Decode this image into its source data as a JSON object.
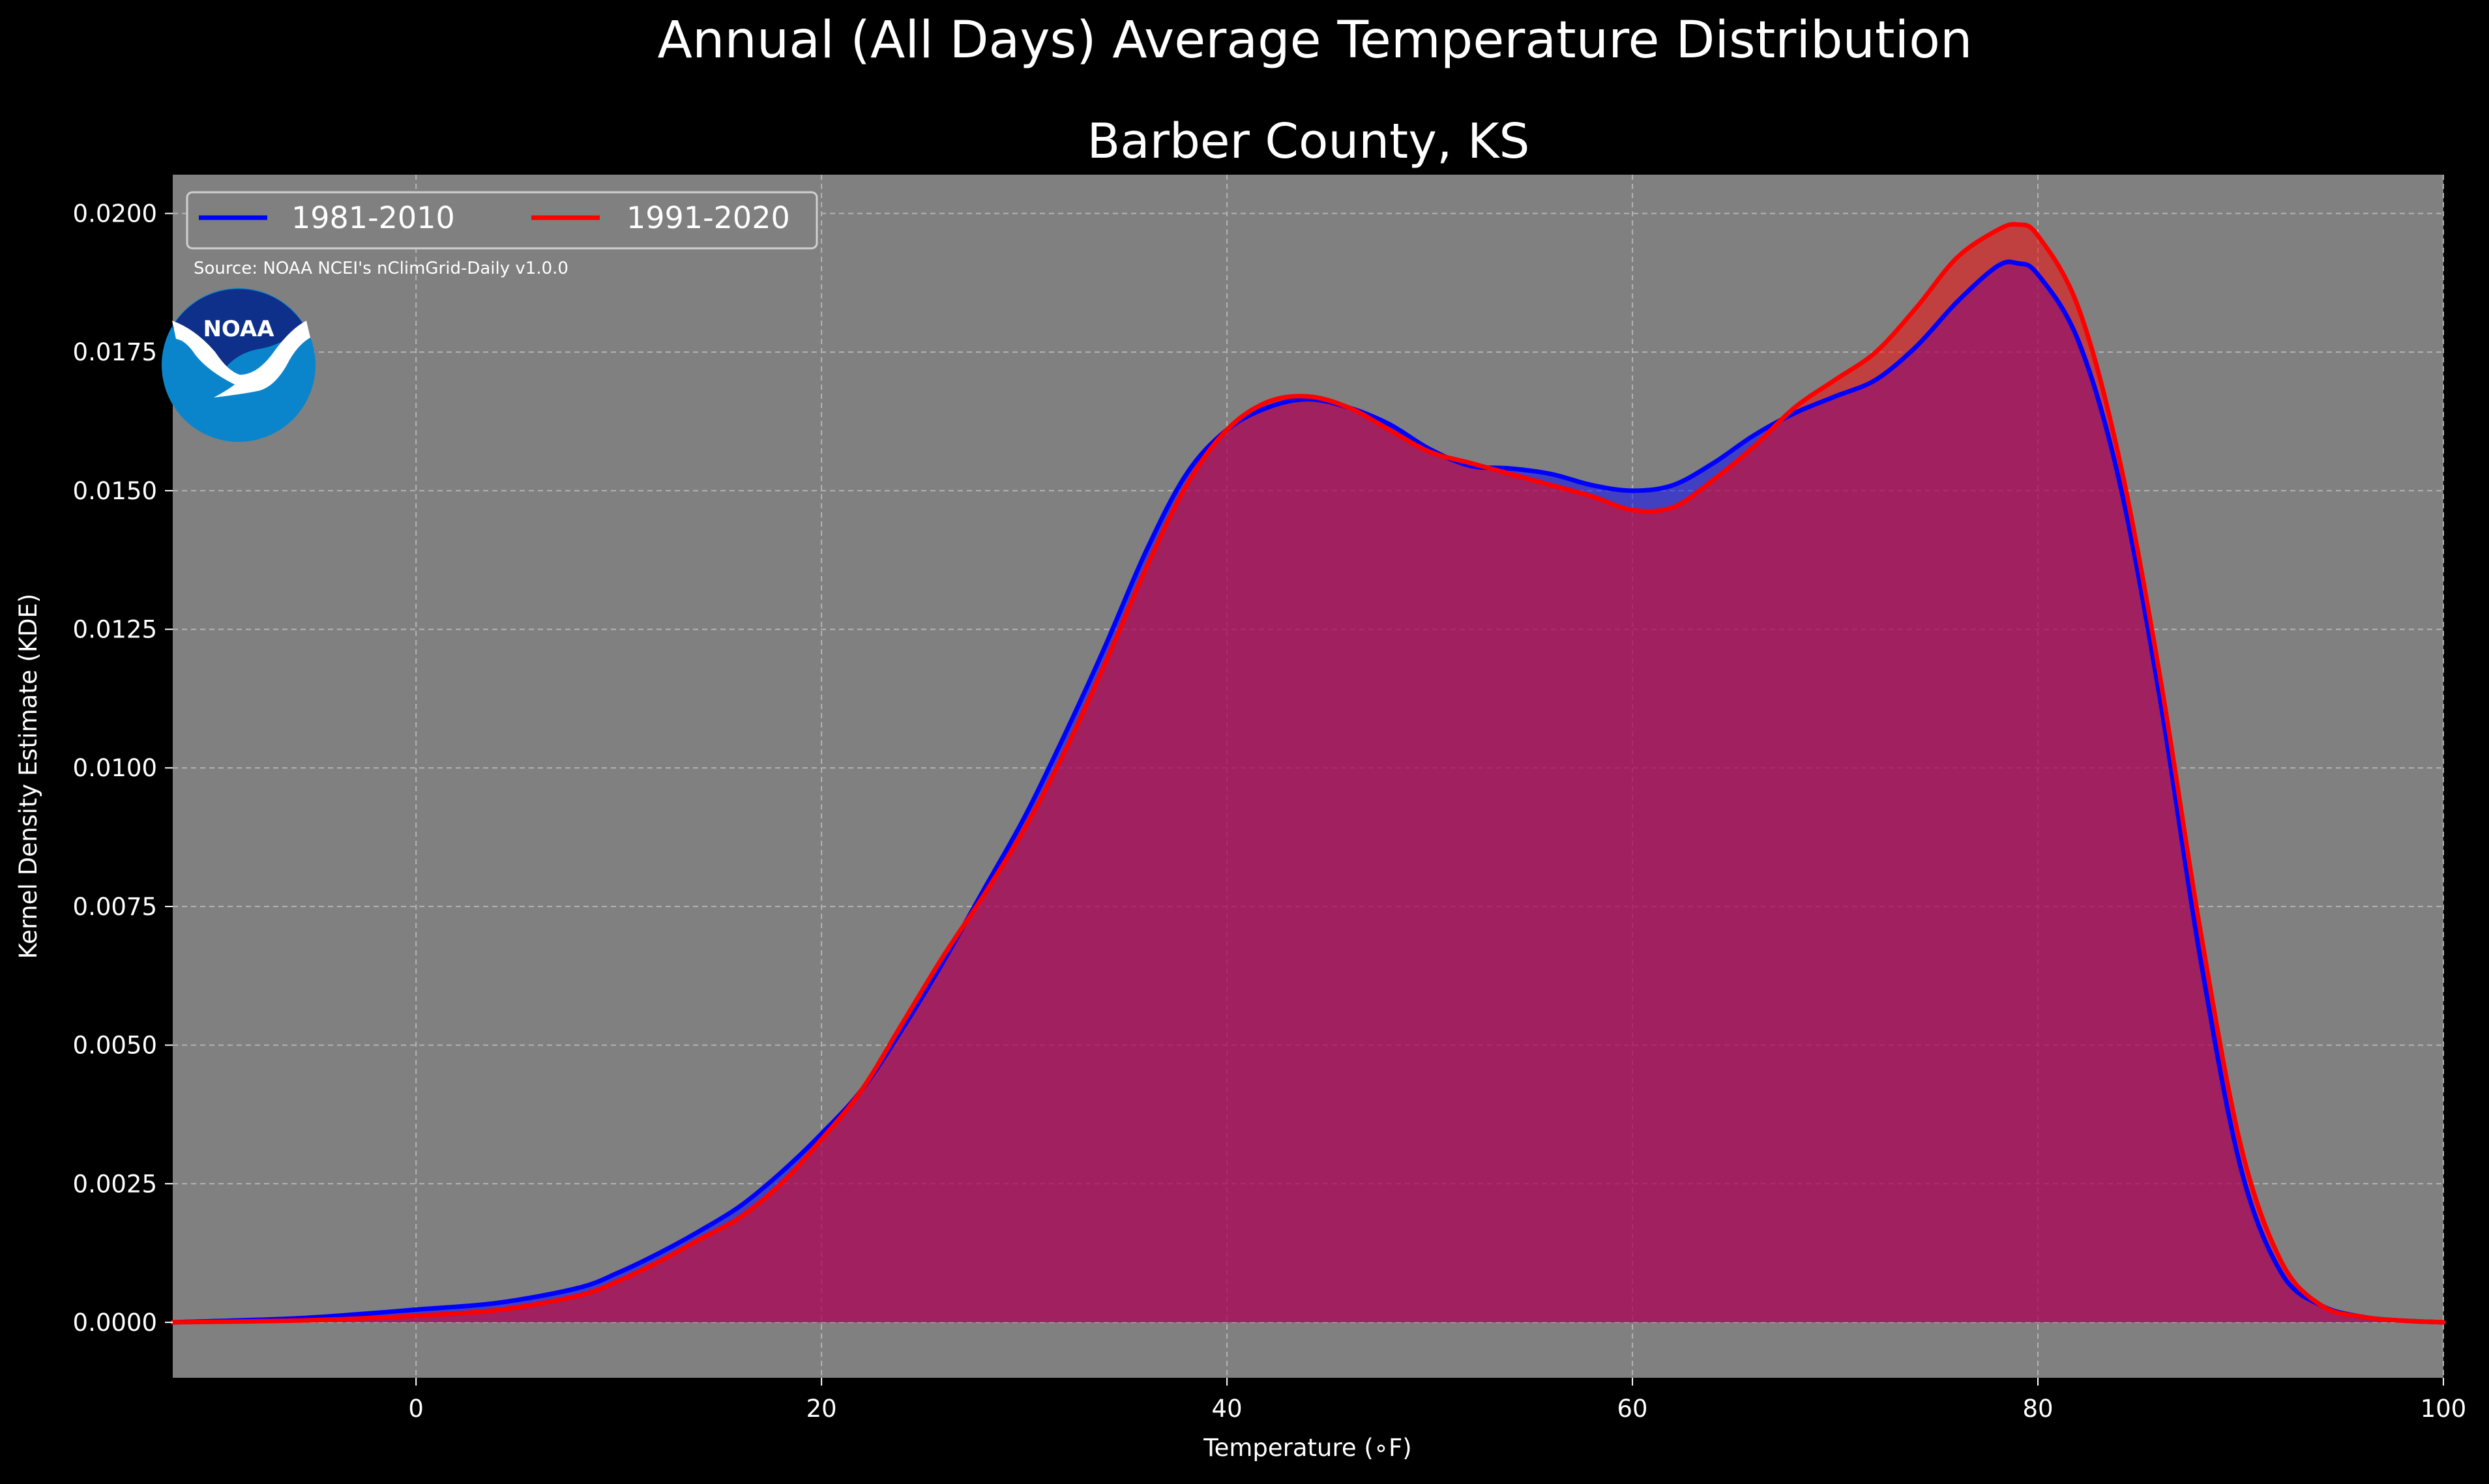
{
  "suptitle": "Annual (All Days) Average Temperature Distribution",
  "source_note": "Source: NOAA NCEI's nClimGrid-Daily v1.0.0",
  "logo": {
    "text": "NOAA",
    "icon": "noaa-logo-icon",
    "colors": {
      "outer": "#0a85cc",
      "inner": "#0e2f8a",
      "bird": "#ffffff"
    }
  },
  "colors": {
    "figure_bg": "#000000",
    "axes_bg": "#808080",
    "grid": "#b3b3b3",
    "text": "#ffffff",
    "fill_overlap": "#9e1f5e"
  },
  "chart_data": {
    "type": "area",
    "title": "Barber County, KS",
    "xlabel": "Temperature (∘F)",
    "ylabel": "Kernel Density Estimate (KDE)",
    "xlim": [
      -12,
      100
    ],
    "ylim": [
      -0.001,
      0.0207
    ],
    "xticks": [
      0,
      20,
      40,
      60,
      80,
      100
    ],
    "xtick_labels": [
      "0",
      "20",
      "40",
      "60",
      "80",
      "100"
    ],
    "yticks": [
      0,
      0.0025,
      0.005,
      0.0075,
      0.01,
      0.0125,
      0.015,
      0.0175,
      0.02
    ],
    "ytick_labels": [
      "0.0000",
      "0.0025",
      "0.0050",
      "0.0075",
      "0.0100",
      "0.0125",
      "0.0150",
      "0.0175",
      "0.0200"
    ],
    "grid": true,
    "legend_position": "top-left",
    "series": [
      {
        "name": "1981-2010",
        "color": "#0000ff",
        "x": [
          -12,
          -6,
          -2,
          0,
          4,
          8,
          10,
          12,
          14,
          16,
          18,
          20,
          22,
          24,
          26,
          28,
          30,
          32,
          34,
          36,
          38,
          40,
          42,
          44,
          46,
          48,
          50,
          52,
          54,
          56,
          58,
          60,
          62,
          64,
          66,
          68,
          70,
          72,
          74,
          76,
          78,
          79,
          80,
          82,
          84,
          86,
          88,
          90,
          92,
          94,
          96,
          98,
          100
        ],
        "y": [
          0.0,
          7e-05,
          0.00017,
          0.00023,
          0.00035,
          0.00062,
          0.0009,
          0.00125,
          0.00165,
          0.0021,
          0.0027,
          0.0034,
          0.0042,
          0.0053,
          0.0065,
          0.0078,
          0.0091,
          0.0106,
          0.0122,
          0.0139,
          0.0153,
          0.0161,
          0.0165,
          0.01665,
          0.0165,
          0.0162,
          0.01575,
          0.01545,
          0.0154,
          0.0153,
          0.0151,
          0.015,
          0.0151,
          0.0155,
          0.016,
          0.0164,
          0.0167,
          0.017,
          0.0176,
          0.0184,
          0.01905,
          0.0191,
          0.0189,
          0.0177,
          0.0152,
          0.0113,
          0.0066,
          0.0028,
          0.0009,
          0.0003,
          0.0001,
          3e-05,
          0.0
        ]
      },
      {
        "name": "1991-2020",
        "color": "#ff0000",
        "x": [
          -12,
          -6,
          -2,
          0,
          4,
          8,
          10,
          12,
          14,
          16,
          18,
          20,
          22,
          24,
          26,
          28,
          30,
          32,
          34,
          36,
          38,
          40,
          42,
          44,
          46,
          48,
          50,
          52,
          54,
          56,
          58,
          60,
          62,
          64,
          66,
          68,
          70,
          72,
          74,
          76,
          78,
          79,
          80,
          82,
          84,
          86,
          88,
          90,
          92,
          94,
          96,
          98,
          100
        ],
        "y": [
          0.0,
          3e-05,
          8e-05,
          0.00012,
          0.00022,
          0.00048,
          0.00075,
          0.0011,
          0.0015,
          0.0019,
          0.0025,
          0.0033,
          0.0042,
          0.0054,
          0.0066,
          0.0077,
          0.0089,
          0.0103,
          0.0119,
          0.0136,
          0.0151,
          0.0161,
          0.0166,
          0.0167,
          0.0165,
          0.0161,
          0.0157,
          0.0155,
          0.0153,
          0.0151,
          0.0149,
          0.01465,
          0.0147,
          0.0152,
          0.0158,
          0.0165,
          0.017,
          0.0175,
          0.0183,
          0.0192,
          0.0197,
          0.0198,
          0.0196,
          0.0183,
          0.0156,
          0.0117,
          0.0071,
          0.0032,
          0.0011,
          0.0003,
          0.0001,
          3e-05,
          0.0
        ]
      }
    ]
  }
}
